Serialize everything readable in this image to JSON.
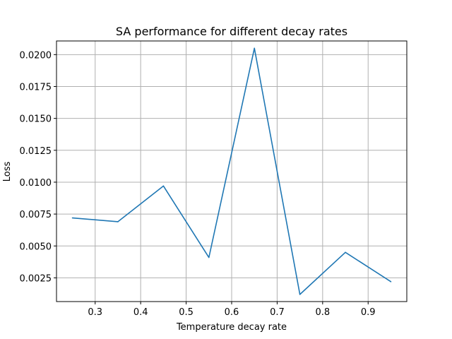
{
  "chart_data": {
    "type": "line",
    "title": "SA performance for different decay rates",
    "xlabel": "Temperature decay rate",
    "ylabel": "Loss",
    "xlim": [
      0.215,
      0.985
    ],
    "ylim": [
      0.00064,
      0.02107
    ],
    "grid": true,
    "xticks": [
      0.3,
      0.4,
      0.5,
      0.6,
      0.7,
      0.8,
      0.9
    ],
    "xtick_labels": [
      "0.3",
      "0.4",
      "0.5",
      "0.6",
      "0.7",
      "0.8",
      "0.9"
    ],
    "yticks": [
      0.0025,
      0.005,
      0.0075,
      0.01,
      0.0125,
      0.015,
      0.0175,
      0.02
    ],
    "ytick_labels": [
      "0.0025",
      "0.0050",
      "0.0075",
      "0.0100",
      "0.0125",
      "0.0150",
      "0.0175",
      "0.0200"
    ],
    "series": [
      {
        "color": "#1f77b4",
        "x": [
          0.25,
          0.35,
          0.45,
          0.55,
          0.65,
          0.75,
          0.85,
          0.95
        ],
        "y": [
          0.0072,
          0.0069,
          0.0097,
          0.0041,
          0.0205,
          0.0012,
          0.0045,
          0.0022
        ]
      }
    ]
  }
}
